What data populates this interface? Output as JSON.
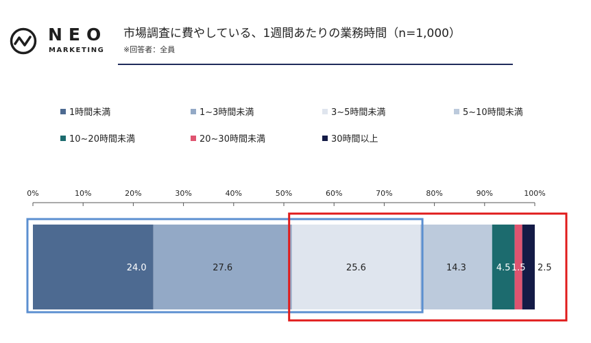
{
  "brand": {
    "name": "NEO",
    "sub": "MARKETING"
  },
  "header": {
    "title": "市場調査に費やしている、1週間あたりの業務時間（n=1,000）",
    "note": "※回答者：全員"
  },
  "chart_data": {
    "type": "bar",
    "orientation": "horizontal-stacked-100",
    "title": "市場調査に費やしている、1週間あたりの業務時間（n=1,000）",
    "xlim": [
      0,
      100
    ],
    "x_ticks": [
      "0%",
      "10%",
      "20%",
      "30%",
      "40%",
      "50%",
      "60%",
      "70%",
      "80%",
      "90%",
      "100%"
    ],
    "legend_position": "top",
    "series": [
      {
        "name": "1時間未満",
        "value": 24.0,
        "label": "24.0",
        "color": "#4d6a91",
        "label_color": "#ffffff"
      },
      {
        "name": "1~3時間未満",
        "value": 27.6,
        "label": "27.6",
        "color": "#93a9c6",
        "label_color": "#222222"
      },
      {
        "name": "3~5時間未満",
        "value": 25.6,
        "label": "25.6",
        "color": "#dfe5ee",
        "label_color": "#222222"
      },
      {
        "name": "5~10時間未満",
        "value": 14.3,
        "label": "14.3",
        "color": "#bccadc",
        "label_color": "#222222"
      },
      {
        "name": "10~20時間未満",
        "value": 4.5,
        "label": "4.5",
        "color": "#1c6b6e",
        "label_color": "#ffffff"
      },
      {
        "name": "20~30時間未満",
        "value": 1.5,
        "label": "1.5",
        "color": "#df5470",
        "label_color": "#ffffff"
      },
      {
        "name": "30時間以上",
        "value": 2.5,
        "label": "2.5",
        "color": "#141b46",
        "label_color": "#222222"
      }
    ],
    "highlights": [
      {
        "from": 0,
        "to": 77.2,
        "color": "#5b8fd0"
      },
      {
        "from": 51.6,
        "to": 100,
        "color": "#e01b1b"
      }
    ]
  }
}
